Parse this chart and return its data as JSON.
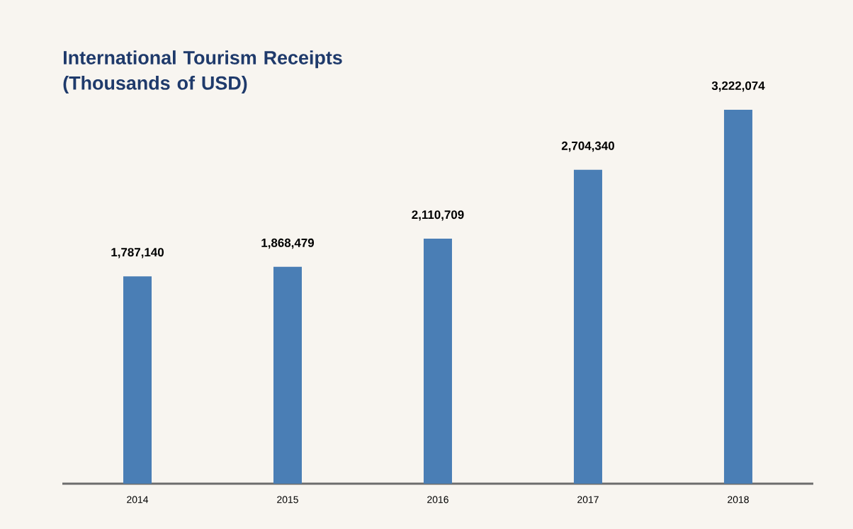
{
  "chart_data": {
    "type": "bar",
    "title": "International Tourism Receipts (Thousands of USD)",
    "categories": [
      "2014",
      "2015",
      "2016",
      "2017",
      "2018"
    ],
    "values": [
      1787140,
      1868479,
      2110709,
      2704340,
      3222074
    ],
    "value_labels": [
      "1,787,140",
      "1,868,479",
      "2,110,709",
      "2,704,340",
      "3,222,074"
    ],
    "color": "#4a7eb5"
  }
}
